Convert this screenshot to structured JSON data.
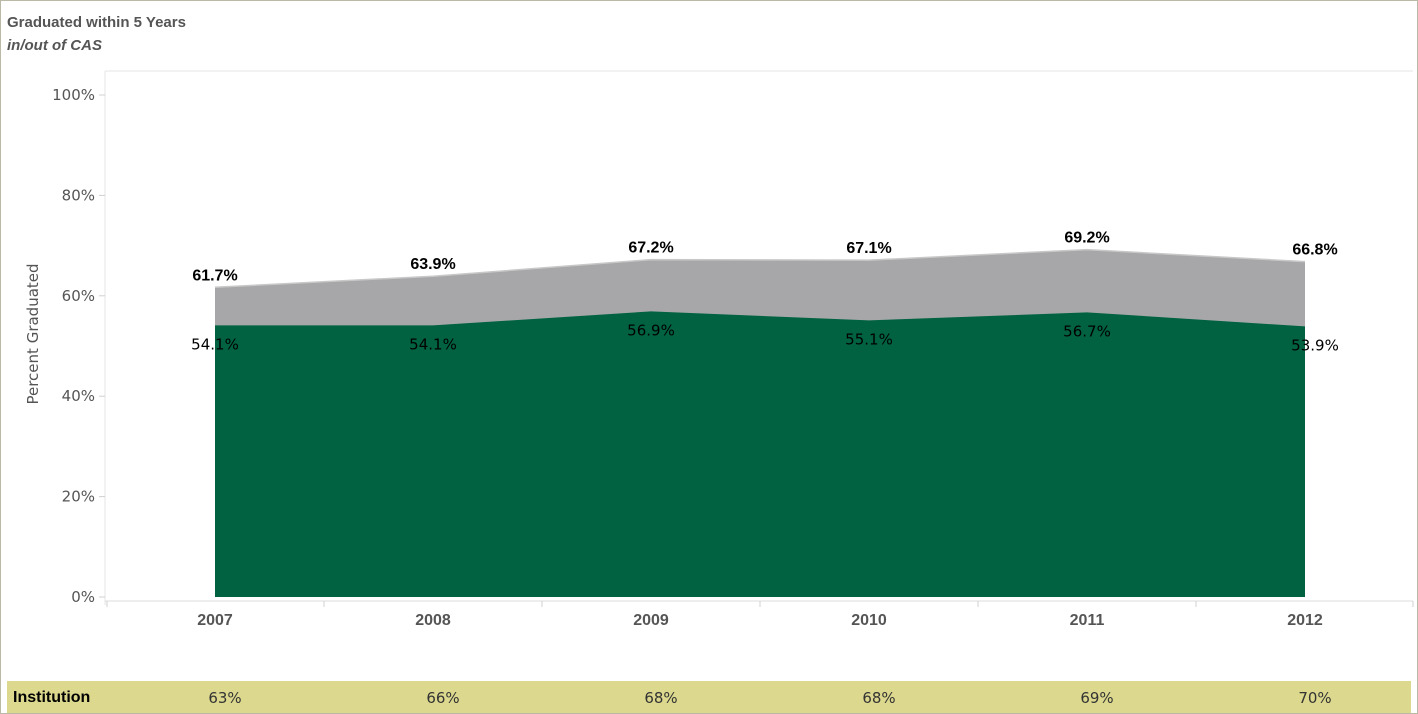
{
  "header": {
    "title": "Graduated within 5 Years",
    "subtitle": "in/out of CAS"
  },
  "chart_data": {
    "type": "area",
    "stacked": false,
    "categories": [
      "2007",
      "2008",
      "2009",
      "2010",
      "2011",
      "2012"
    ],
    "ylabel": "Percent Graduated",
    "xlabel": "",
    "ylim": [
      0,
      100
    ],
    "yticks": [
      "0%",
      "20%",
      "40%",
      "60%",
      "80%",
      "100%"
    ],
    "grid": false,
    "series": [
      {
        "values": [
          61.7,
          63.9,
          67.2,
          67.1,
          69.2,
          66.8
        ],
        "color": "#a7a7a9",
        "labels": [
          "61.7%",
          "63.9%",
          "67.2%",
          "67.1%",
          "69.2%",
          "66.8%"
        ]
      },
      {
        "values": [
          54.1,
          54.1,
          56.9,
          55.1,
          56.7,
          53.9
        ],
        "color": "#006241",
        "labels": [
          "54.1%",
          "54.1%",
          "56.9%",
          "55.1%",
          "56.7%",
          "53.9%"
        ]
      }
    ]
  },
  "institution_row": {
    "label": "Institution",
    "values": [
      "63%",
      "66%",
      "68%",
      "68%",
      "69%",
      "70%"
    ]
  },
  "colors": {
    "band": "#dcd98e",
    "inner": "#006241",
    "outer": "#a7a7a9",
    "border": "#b9b9a6"
  }
}
